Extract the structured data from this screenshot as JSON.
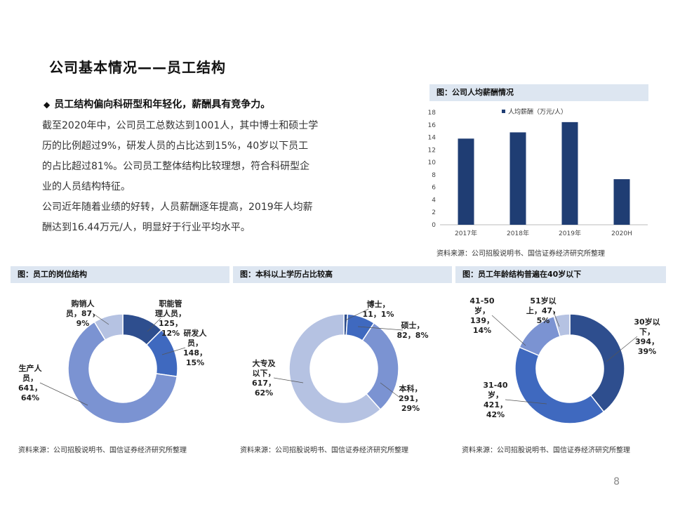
{
  "page": {
    "title": "公司基本情况——员工结构",
    "bullet": "员工结构偏向科研型和年轻化，薪酬具有竞争力。",
    "paragraphs": [
      "截至2020年中，公司员工总数达到1001人，其中博士和硕士学",
      "历的比例超过9%，研发人员的占比达到15%，40岁以下员工",
      "的占比超过81%。公司员工整体结构比较理想，符合科研型企",
      "业的人员结构特征。",
      "公司近年随着业绩的好转，人员薪酬逐年提高，2019年人均薪",
      "酬达到16.44万元/人，明显好于行业平均水平。"
    ],
    "page_number": "8"
  },
  "captions": {
    "salary": "图：公司人均薪酬情况",
    "position": "图：员工的岗位结构",
    "education": "图：本科以上学历占比较高",
    "age": "图：员工年龄结构普遍在40岁以下"
  },
  "sources": {
    "salary": "资料来源：公司招股说明书、国信证券经济研究所整理",
    "position": "资料来源：公司招股说明书、国信证券经济研究所整理",
    "education": "资料来源：公司招股说明书、国信证券经济研究所整理",
    "age": "资料来源：公司招股说明书、国信证券经济研究所整理"
  },
  "chart_data": [
    {
      "type": "bar",
      "title": "",
      "categories": [
        "2017年",
        "2018年",
        "2019年",
        "2020H"
      ],
      "series": [
        {
          "name": "人均薪酬（万元/人）",
          "values": [
            13.8,
            14.8,
            16.44,
            7.3
          ]
        }
      ],
      "ylim": [
        0,
        18
      ],
      "yticks": [
        0,
        2,
        4,
        6,
        8,
        10,
        12,
        14,
        16,
        18
      ],
      "legend": "top",
      "color": "#1f3d73"
    },
    {
      "type": "pie",
      "variant": "donut",
      "slices": [
        {
          "lines": [
            "职能管",
            "理人员，",
            "125，",
            "12%"
          ],
          "value": 125,
          "color": "#2e4e8e"
        },
        {
          "lines": [
            "研发人",
            "员，",
            "148，",
            "15%"
          ],
          "value": 148,
          "color": "#3f69bf"
        },
        {
          "lines": [
            "生产人",
            "员，",
            "641，",
            "64%"
          ],
          "value": 641,
          "color": "#7b93d2"
        },
        {
          "lines": [
            "购销人",
            "员，87，",
            "9%"
          ],
          "value": 87,
          "color": "#b5c2e2"
        }
      ]
    },
    {
      "type": "pie",
      "variant": "donut",
      "slices": [
        {
          "lines": [
            "博士，",
            "11，1%"
          ],
          "value": 11,
          "color": "#2e4e8e"
        },
        {
          "lines": [
            "硕士，",
            "82，8%"
          ],
          "value": 82,
          "color": "#3f69bf"
        },
        {
          "lines": [
            "本科，",
            "291，",
            "29%"
          ],
          "value": 291,
          "color": "#7b93d2"
        },
        {
          "lines": [
            "大专及",
            "以下，",
            "617，",
            "62%"
          ],
          "value": 617,
          "color": "#b5c2e2"
        }
      ]
    },
    {
      "type": "pie",
      "variant": "donut",
      "slices": [
        {
          "lines": [
            "30岁以",
            "下，",
            "394，",
            "39%"
          ],
          "value": 394,
          "color": "#2e4e8e"
        },
        {
          "lines": [
            "31-40",
            "岁，",
            "421，",
            "42%"
          ],
          "value": 421,
          "color": "#3f69bf"
        },
        {
          "lines": [
            "41-50",
            "岁，",
            "139，",
            "14%"
          ],
          "value": 139,
          "color": "#7b93d2"
        },
        {
          "lines": [
            "51岁以",
            "上，47，",
            "5%"
          ],
          "value": 47,
          "color": "#b5c2e2"
        }
      ]
    }
  ]
}
